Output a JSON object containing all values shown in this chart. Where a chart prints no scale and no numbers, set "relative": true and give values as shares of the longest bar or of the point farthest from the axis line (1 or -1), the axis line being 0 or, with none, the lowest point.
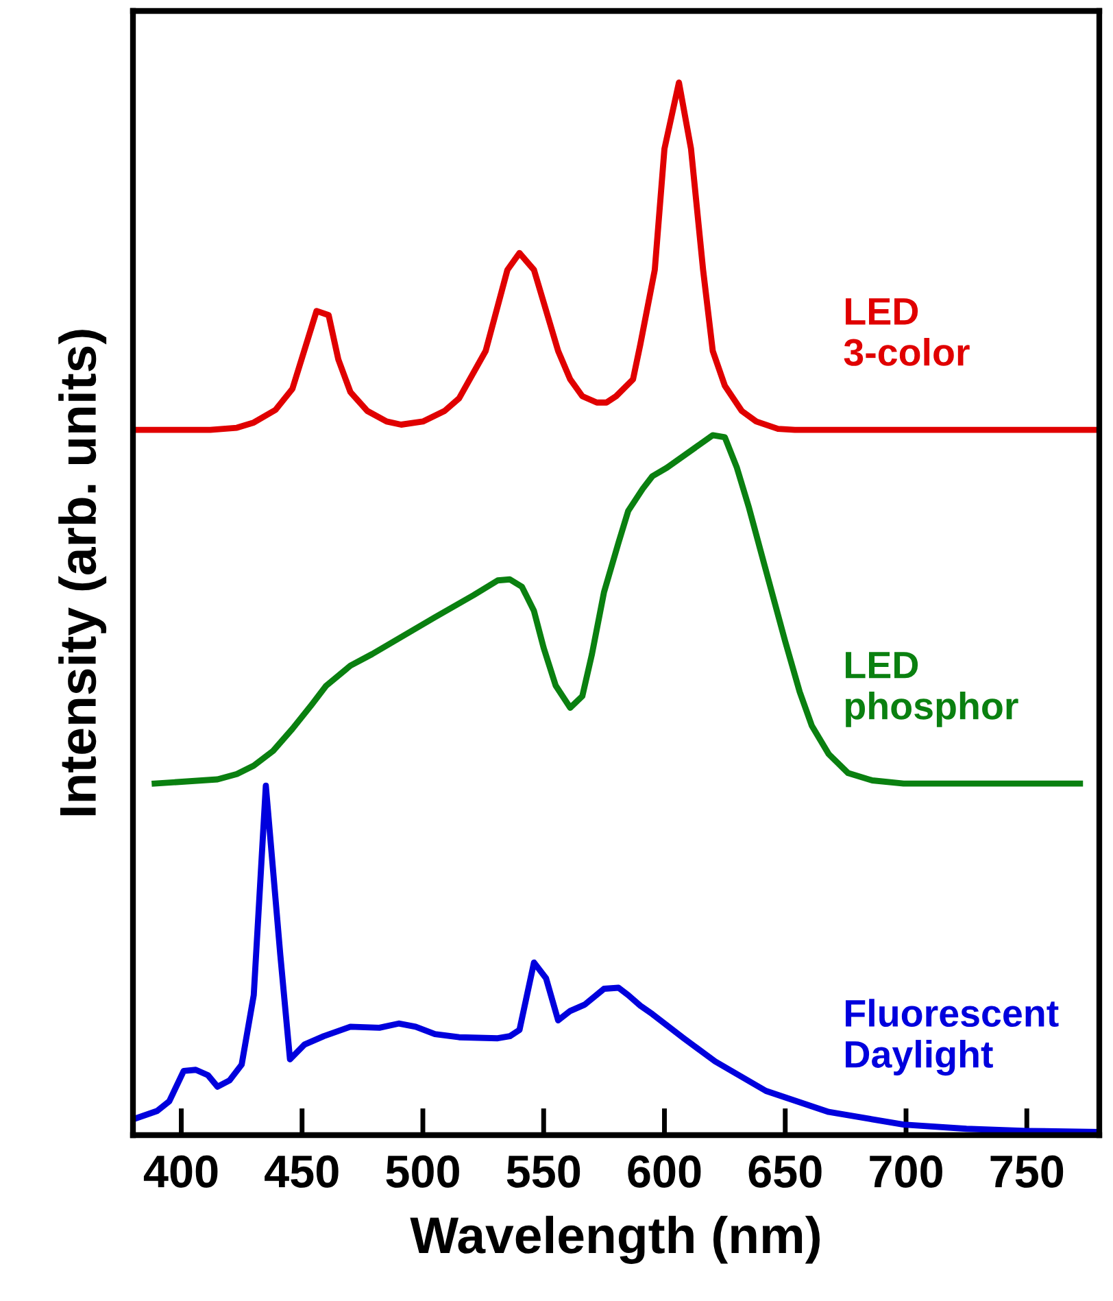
{
  "chart_data": {
    "type": "line",
    "relative": true,
    "xlabel": "Wavelength (nm)",
    "ylabel": "Intensity (arb. units)",
    "xlim": [
      380,
      780
    ],
    "xticks": [
      400,
      450,
      500,
      550,
      600,
      650,
      700,
      750
    ],
    "grid": false,
    "legend": false,
    "marker": "none",
    "line_style": "solid",
    "series": [
      {
        "name": "LED\n3-color",
        "color": "#e00000",
        "x": [
          381,
          412,
          423,
          430,
          439,
          446,
          456,
          461,
          465,
          470,
          477,
          485,
          491,
          500,
          509,
          515,
          526,
          535,
          540,
          546,
          556,
          561,
          566,
          572,
          576,
          580,
          587,
          590,
          596,
          600,
          606,
          611,
          616,
          620,
          625,
          632,
          638,
          647,
          654,
          779
        ],
        "values": [
          0.67,
          0.67,
          0.672,
          0.677,
          0.689,
          0.709,
          0.783,
          0.779,
          0.737,
          0.706,
          0.688,
          0.678,
          0.675,
          0.678,
          0.688,
          0.7,
          0.745,
          0.822,
          0.838,
          0.822,
          0.745,
          0.718,
          0.702,
          0.696,
          0.696,
          0.702,
          0.718,
          0.751,
          0.822,
          0.937,
          1.0,
          0.937,
          0.822,
          0.745,
          0.712,
          0.688,
          0.678,
          0.671,
          0.67,
          0.67
        ]
      },
      {
        "name": "LED\nphosphor",
        "color": "#0a8010",
        "x": [
          389,
          415,
          423,
          430,
          438,
          446,
          454,
          460,
          470,
          479,
          505,
          521,
          531,
          536,
          541,
          546,
          550,
          555,
          561,
          566,
          570,
          575,
          581,
          585,
          591,
          595,
          601,
          620,
          625,
          630,
          635,
          641,
          650,
          656,
          661,
          668,
          676,
          686,
          699,
          772
        ],
        "values": [
          0.334,
          0.338,
          0.343,
          0.351,
          0.365,
          0.386,
          0.409,
          0.427,
          0.446,
          0.457,
          0.492,
          0.513,
          0.527,
          0.528,
          0.521,
          0.498,
          0.463,
          0.427,
          0.406,
          0.417,
          0.457,
          0.516,
          0.563,
          0.593,
          0.614,
          0.626,
          0.634,
          0.665,
          0.663,
          0.634,
          0.596,
          0.545,
          0.469,
          0.421,
          0.389,
          0.362,
          0.344,
          0.337,
          0.334,
          0.334
        ]
      },
      {
        "name": "Fluorescent\nDaylight",
        "color": "#0000dd",
        "x": [
          380,
          390,
          395,
          401,
          406,
          411,
          415,
          420,
          425,
          430,
          435,
          441,
          445,
          451,
          459,
          470,
          482,
          490,
          497,
          505,
          515,
          531,
          536,
          540,
          546,
          551,
          556,
          561,
          567,
          575,
          581,
          585,
          590,
          595,
          608,
          621,
          642,
          668,
          699,
          725,
          750,
          779
        ],
        "values": [
          0.015,
          0.023,
          0.032,
          0.061,
          0.062,
          0.057,
          0.046,
          0.052,
          0.067,
          0.133,
          0.332,
          0.171,
          0.072,
          0.086,
          0.094,
          0.103,
          0.102,
          0.106,
          0.103,
          0.096,
          0.093,
          0.092,
          0.094,
          0.1,
          0.164,
          0.149,
          0.109,
          0.118,
          0.124,
          0.139,
          0.14,
          0.133,
          0.123,
          0.115,
          0.092,
          0.07,
          0.042,
          0.022,
          0.01,
          0.006,
          0.004,
          0.003
        ]
      }
    ]
  }
}
